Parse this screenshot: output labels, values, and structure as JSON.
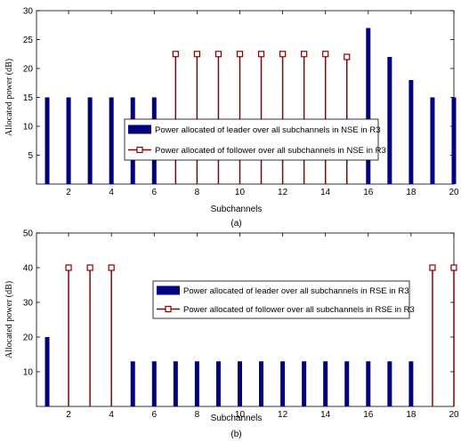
{
  "chart_data": [
    {
      "type": "bar",
      "caption": "(a)",
      "xlabel": "Subchannels",
      "ylabel": "Allocated power (dB)",
      "xlim": [
        0.5,
        20
      ],
      "ylim": [
        0,
        30
      ],
      "xticks": [
        2,
        4,
        6,
        8,
        10,
        12,
        14,
        16,
        18,
        20
      ],
      "yticks": [
        5,
        10,
        15,
        20,
        25,
        30
      ],
      "legend_position": "center-right",
      "series": [
        {
          "name": "Power allocated of leader over all subchannels in NSE in R3",
          "style": "bar",
          "color": "#000080",
          "x": [
            1,
            2,
            3,
            4,
            5,
            6,
            16,
            17,
            18,
            19,
            20
          ],
          "values": [
            15,
            15,
            15,
            15,
            15,
            15,
            27,
            22,
            18,
            15,
            15
          ]
        },
        {
          "name": "Power allocated of follower over all subchannels in NSE in R3",
          "style": "stem",
          "color": "#8b0000",
          "x": [
            7,
            8,
            9,
            10,
            11,
            12,
            13,
            14,
            15
          ],
          "values": [
            22.5,
            22.5,
            22.5,
            22.5,
            22.5,
            22.5,
            22.5,
            22.5,
            22
          ]
        }
      ]
    },
    {
      "type": "bar",
      "caption": "(b)",
      "xlabel": "Subchannels",
      "ylabel": "Allocated power (dB)",
      "xlim": [
        0.5,
        20
      ],
      "ylim": [
        0,
        50
      ],
      "xticks": [
        2,
        4,
        6,
        8,
        10,
        12,
        14,
        16,
        18,
        20
      ],
      "yticks": [
        10,
        20,
        30,
        40,
        50
      ],
      "legend_position": "center",
      "series": [
        {
          "name": "Power allocated of leader over all subchannels in RSE in R3",
          "style": "bar",
          "color": "#000080",
          "x": [
            1,
            5,
            6,
            7,
            8,
            9,
            10,
            11,
            12,
            13,
            14,
            15,
            16,
            17,
            18
          ],
          "values": [
            20,
            13,
            13,
            13,
            13,
            13,
            13,
            13,
            13,
            13,
            13,
            13,
            13,
            13,
            13
          ]
        },
        {
          "name": "Power allocated of follower over all subchannels in RSE in R3",
          "style": "stem",
          "color": "#8b0000",
          "x": [
            2,
            3,
            4,
            19,
            20
          ],
          "values": [
            40,
            40,
            40,
            40,
            40
          ]
        }
      ]
    }
  ]
}
